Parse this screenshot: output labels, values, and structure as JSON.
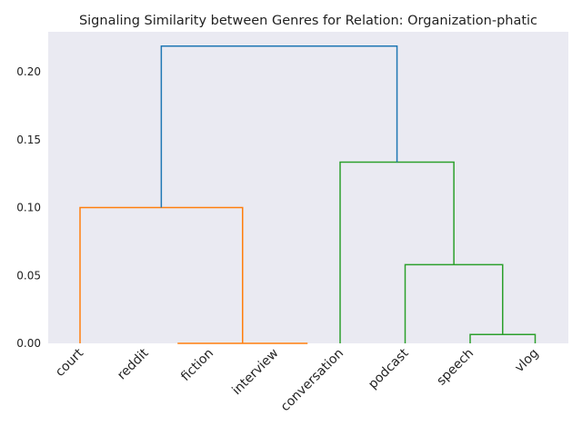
{
  "chart_data": {
    "type": "dendrogram",
    "title": "Signaling Similarity between Genres for Relation: Organization-phatic",
    "xlabel": "",
    "ylabel": "",
    "leaves": [
      "court",
      "reddit",
      "fiction",
      "interview",
      "conversation",
      "podcast",
      "speech",
      "vlog"
    ],
    "yticks": [
      0.0,
      0.05,
      0.1,
      0.15,
      0.2
    ],
    "ylim": [
      0,
      0.2295
    ],
    "grid": false,
    "background": "#eaeaf2",
    "links": [
      {
        "left": [
          "leaf",
          1.5
        ],
        "right": [
          "leaf",
          3.5
        ],
        "height": 0.0,
        "color": "#ff7f0e"
      },
      {
        "left": [
          "leaf",
          0
        ],
        "right": [
          "node",
          2.5,
          0.0
        ],
        "height": 0.1,
        "color": "#ff7f0e"
      },
      {
        "left": [
          "leaf",
          6
        ],
        "right": [
          "leaf",
          7
        ],
        "height": 0.0065,
        "color": "#2ca02c"
      },
      {
        "left": [
          "leaf",
          5
        ],
        "right": [
          "node",
          6.5,
          0.0065
        ],
        "height": 0.058,
        "color": "#2ca02c"
      },
      {
        "left": [
          "leaf",
          4
        ],
        "right": [
          "node",
          5.75,
          0.058
        ],
        "height": 0.1335,
        "color": "#2ca02c"
      },
      {
        "left": [
          "node",
          1.25,
          0.1
        ],
        "right": [
          "node",
          4.875,
          0.1335
        ],
        "height": 0.219,
        "color": "#1f77b4"
      }
    ]
  }
}
